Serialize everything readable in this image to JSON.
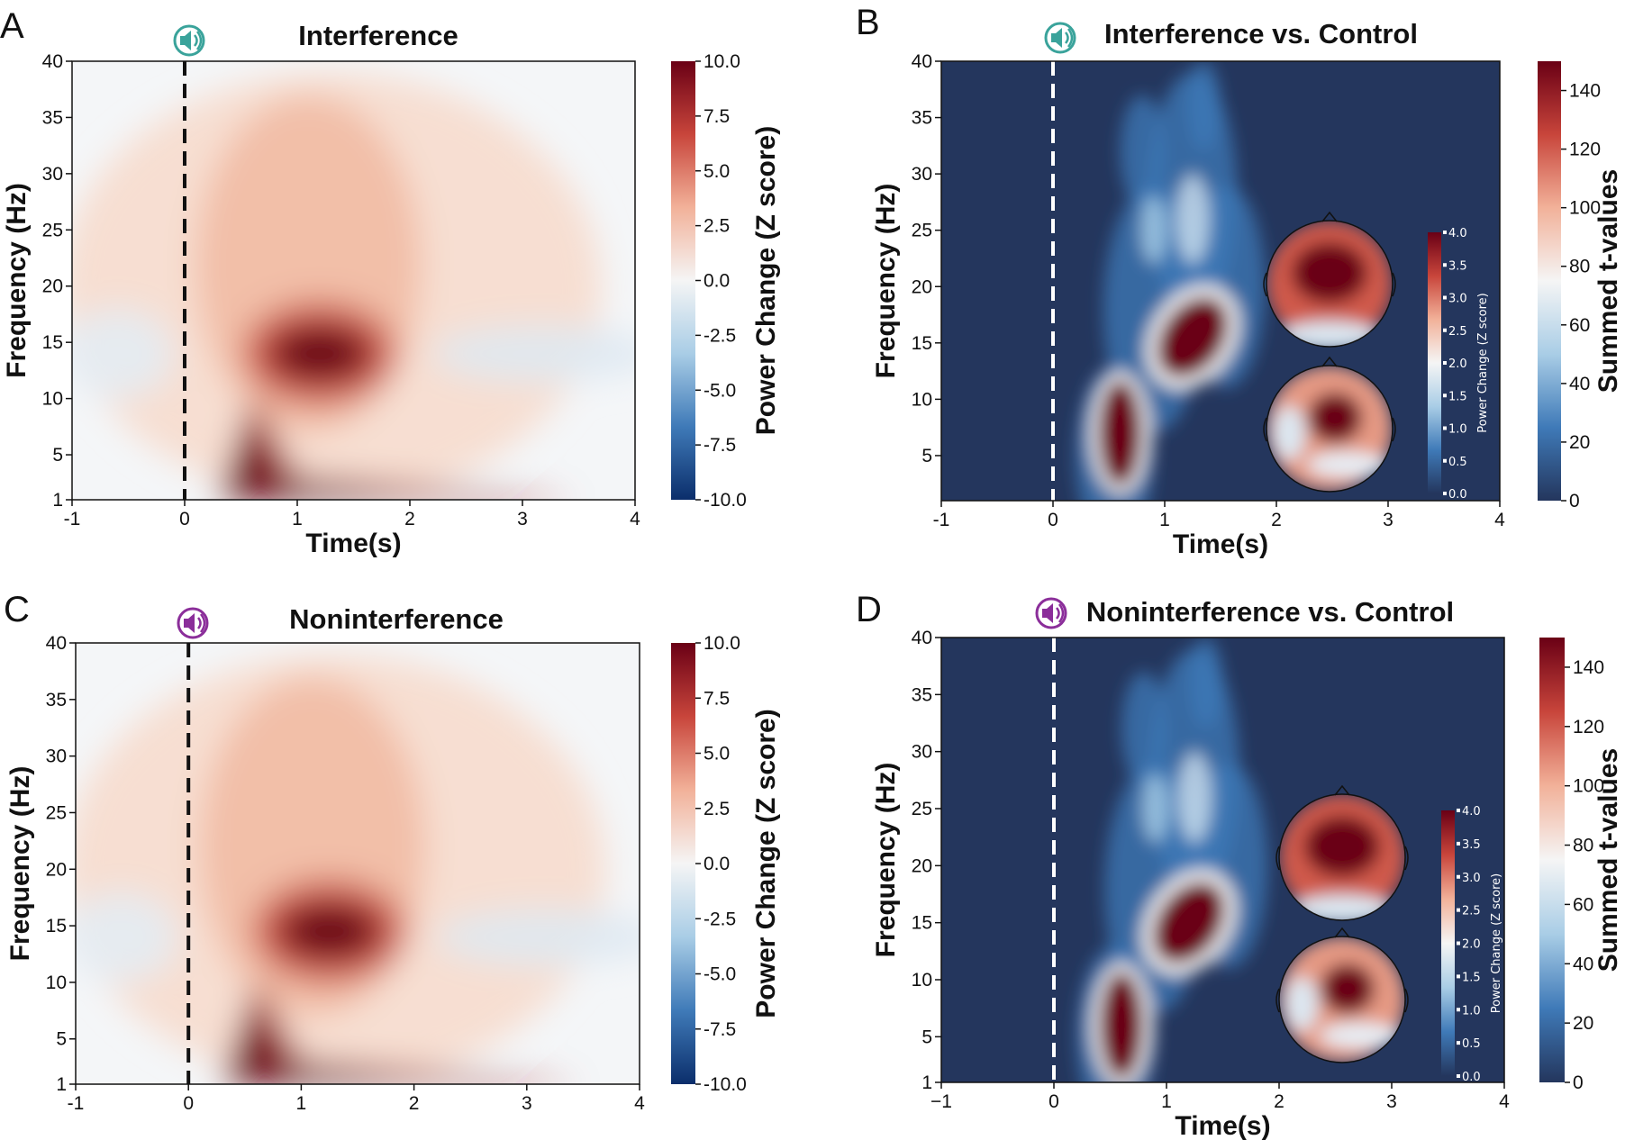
{
  "chart_data": [
    {
      "panel": "A",
      "type": "heatmap",
      "title": "Interference",
      "xlabel": "Time(s)",
      "ylabel": "Frequency (Hz)",
      "xlim": [
        -1,
        4
      ],
      "ylim": [
        1,
        40
      ],
      "xticks": [
        "-1",
        "0",
        "1",
        "2",
        "3",
        "4"
      ],
      "yticks": [
        "1",
        "5",
        "10",
        "15",
        "20",
        "25",
        "30",
        "35",
        "40"
      ],
      "stimulus_onset": 0,
      "colorbar": {
        "label": "Power Change (Z score)",
        "range": [
          -10,
          10
        ],
        "ticks": [
          "10.0",
          "7.5",
          "5.0",
          "2.5",
          "0.0",
          "-2.5",
          "-5.0",
          "-7.5",
          "-10.0"
        ],
        "colors": [
          "#0b2e6b",
          "#3f7ab8",
          "#a9cde6",
          "#f5f5f5",
          "#f2b199",
          "#c8453b",
          "#6a0015"
        ]
      },
      "icon": "speaker-icon",
      "icon_color": "#3aa39b",
      "blobs": [
        {
          "t": 1.2,
          "f": 14,
          "rt": 0.45,
          "rf": 3.5,
          "v": 10
        },
        {
          "t": 0.65,
          "f": 4,
          "rt": 0.35,
          "rf": 5,
          "v": 10
        },
        {
          "t": 1.2,
          "f": 20,
          "rt": 0.9,
          "rf": 10,
          "v": 3.5
        }
      ]
    },
    {
      "panel": "B",
      "type": "heatmap",
      "title": "Interference vs. Control",
      "xlabel": "Time(s)",
      "ylabel": "Frequency (Hz)",
      "xlim": [
        -1,
        4
      ],
      "ylim": [
        1,
        40
      ],
      "xticks": [
        "-1",
        "0",
        "1",
        "2",
        "3",
        "4"
      ],
      "yticks": [
        "5",
        "10",
        "15",
        "20",
        "25",
        "30",
        "35",
        "40"
      ],
      "stimulus_onset": 0,
      "colorbar": {
        "label": "Summed t-values",
        "range": [
          0,
          150
        ],
        "ticks": [
          "140",
          "120",
          "100",
          "80",
          "60",
          "40",
          "20",
          "0"
        ],
        "colors": [
          "#24365d",
          "#3f7ab8",
          "#a9cde6",
          "#f5f5f5",
          "#f2b199",
          "#c8453b",
          "#6a0015"
        ]
      },
      "topomap_colorbar": {
        "label": "Power Change (Z score)",
        "range": [
          0,
          4
        ],
        "ticks": [
          "4.0",
          "3.5",
          "3.0",
          "2.5",
          "2.0",
          "1.5",
          "1.0",
          "0.5",
          "0.0"
        ]
      },
      "icon": "speaker-icon",
      "icon_color": "#3aa39b",
      "clusters": [
        {
          "t": 0.6,
          "f": 7,
          "v": 150
        },
        {
          "t": 1.25,
          "f": 15.5,
          "v": 150
        },
        {
          "t": 1.3,
          "f": 26,
          "v": 60
        }
      ]
    },
    {
      "panel": "C",
      "type": "heatmap",
      "title": "Noninterference",
      "xlabel": "",
      "ylabel": "Frequency (Hz)",
      "xlim": [
        -1,
        4
      ],
      "ylim": [
        1,
        40
      ],
      "xticks": [
        "-1",
        "0",
        "1",
        "2",
        "3",
        "4"
      ],
      "yticks": [
        "1",
        "5",
        "10",
        "15",
        "20",
        "25",
        "30",
        "35",
        "40"
      ],
      "stimulus_onset": 0,
      "colorbar": {
        "label": "Power Change (Z score)",
        "range": [
          -10,
          10
        ],
        "ticks": [
          "10.0",
          "7.5",
          "5.0",
          "2.5",
          "0.0",
          "-2.5",
          "-5.0",
          "-7.5",
          "-10.0"
        ],
        "colors": [
          "#0b2e6b",
          "#3f7ab8",
          "#a9cde6",
          "#f5f5f5",
          "#f2b199",
          "#c8453b",
          "#6a0015"
        ]
      },
      "icon": "speaker-icon",
      "icon_color": "#8b2e9a",
      "blobs": [
        {
          "t": 1.25,
          "f": 14.5,
          "rt": 0.45,
          "rf": 3.5,
          "v": 10
        },
        {
          "t": 0.65,
          "f": 4,
          "rt": 0.35,
          "rf": 5,
          "v": 10
        },
        {
          "t": 1.2,
          "f": 20,
          "rt": 0.9,
          "rf": 10,
          "v": 3.5
        }
      ]
    },
    {
      "panel": "D",
      "type": "heatmap",
      "title": "Noninterference vs. Control",
      "xlabel": "Time(s)",
      "ylabel": "Frequency (Hz)",
      "xlim": [
        -1,
        4
      ],
      "ylim": [
        1,
        40
      ],
      "xticks": [
        "−1",
        "0",
        "1",
        "2",
        "3",
        "4"
      ],
      "yticks": [
        "1",
        "5",
        "10",
        "15",
        "20",
        "25",
        "30",
        "35",
        "40"
      ],
      "stimulus_onset": 0,
      "colorbar": {
        "label": "Summed t-values",
        "range": [
          0,
          150
        ],
        "ticks": [
          "140",
          "120",
          "100",
          "80",
          "60",
          "40",
          "20",
          "0"
        ],
        "colors": [
          "#24365d",
          "#3f7ab8",
          "#a9cde6",
          "#f5f5f5",
          "#f2b199",
          "#c8453b",
          "#6a0015"
        ]
      },
      "topomap_colorbar": {
        "label": "Power Change (Z score)",
        "range": [
          0,
          4
        ],
        "ticks": [
          "4.0",
          "3.5",
          "3.0",
          "2.5",
          "2.0",
          "1.5",
          "1.0",
          "0.5",
          "0.0"
        ]
      },
      "icon": "speaker-icon",
      "icon_color": "#8b2e9a",
      "clusters": [
        {
          "t": 0.6,
          "f": 6,
          "v": 150
        },
        {
          "t": 1.2,
          "f": 15,
          "v": 150
        },
        {
          "t": 1.3,
          "f": 26,
          "v": 60
        }
      ]
    }
  ]
}
